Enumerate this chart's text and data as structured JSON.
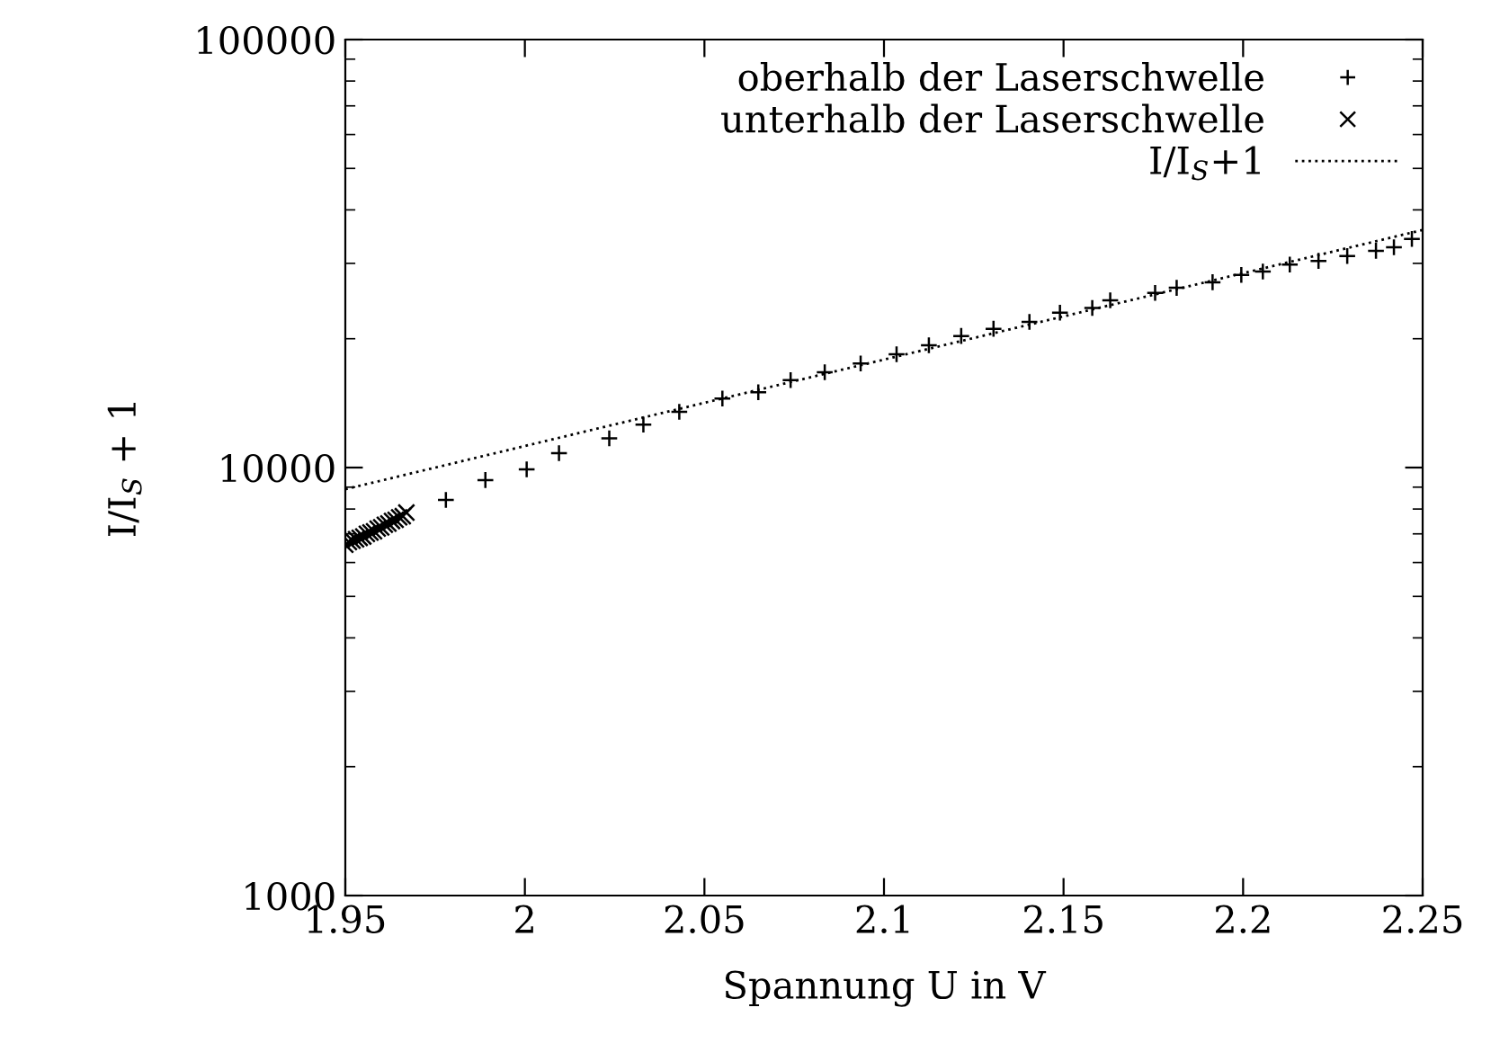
{
  "chart_data": {
    "type": "scatter",
    "xlabel": "Spannung U in V",
    "ylabel": "I/I$_{S}$ + 1",
    "xlim": [
      1.95,
      2.25
    ],
    "xticks": [
      1.95,
      2,
      2.05,
      2.1,
      2.15,
      2.2,
      2.25
    ],
    "ylim": [
      1000,
      100000
    ],
    "yticks": [
      1000,
      10000,
      100000
    ],
    "log": "y",
    "grid": false,
    "legend": "top right",
    "series": [
      {
        "name": "oberhalb der Laserschwelle",
        "color": "#000000",
        "marker": "plus",
        "x": [
          1.978,
          1.989,
          2.0005,
          2.0095,
          2.0235,
          2.033,
          2.043,
          2.055,
          2.065,
          2.074,
          2.0835,
          2.0935,
          2.1035,
          2.1125,
          2.1215,
          2.1305,
          2.1405,
          2.149,
          2.158,
          2.163,
          2.1755,
          2.1815,
          2.1915,
          2.1995,
          2.2055,
          2.213,
          2.221,
          2.229,
          2.237,
          2.242,
          2.247
        ],
        "values": [
          8400,
          9350,
          9900,
          10800,
          11700,
          12600,
          13500,
          14500,
          15000,
          16000,
          16700,
          17500,
          18400,
          19300,
          20300,
          21100,
          21900,
          23000,
          23600,
          24600,
          25600,
          26300,
          27100,
          28200,
          28700,
          29800,
          30400,
          31200,
          32100,
          32700,
          34200
        ]
      },
      {
        "name": "unterhalb der Laserschwelle",
        "color": "#000000",
        "marker": "cross",
        "x": [
          1.95,
          1.951,
          1.952,
          1.953,
          1.954,
          1.955,
          1.956,
          1.957,
          1.958,
          1.959,
          1.96,
          1.961,
          1.962,
          1.963,
          1.964,
          1.965,
          1.966,
          1.967
        ],
        "values": [
          6600,
          6700,
          6750,
          6800,
          6850,
          6900,
          7000,
          7050,
          7100,
          7200,
          7250,
          7350,
          7400,
          7500,
          7550,
          7650,
          7700,
          7850
        ]
      },
      {
        "name": "I/I$_{S}$+1",
        "type": "line",
        "color": "#000000",
        "line_style": "dotted",
        "marker": "none",
        "x": [
          1.95,
          2.25
        ],
        "values": [
          8900,
          35900
        ]
      }
    ]
  }
}
